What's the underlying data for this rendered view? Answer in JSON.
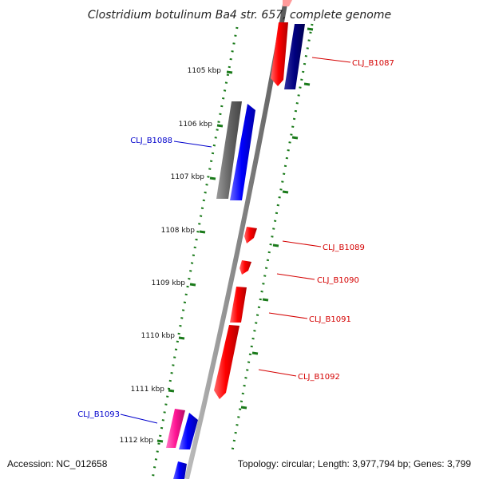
{
  "title": "Clostridium botulinum Ba4 str. 657, complete genome",
  "accession": "Accession: NC_012658",
  "summary": "Topology: circular; Length: 3,977,794 bp; Genes: 3,799",
  "ticks": [
    "1105 kbp",
    "1106 kbp",
    "1107 kbp",
    "1108 kbp",
    "1109 kbp",
    "1110 kbp",
    "1111 kbp",
    "1112 kbp"
  ],
  "gene_labels": [
    {
      "id": "CLJ_B1087",
      "color": "#d40000"
    },
    {
      "id": "CLJ_B1088",
      "color": "#0000cc"
    },
    {
      "id": "CLJ_B1089",
      "color": "#d40000"
    },
    {
      "id": "CLJ_B1090",
      "color": "#d40000"
    },
    {
      "id": "CLJ_B1091",
      "color": "#d40000"
    },
    {
      "id": "CLJ_B1092",
      "color": "#d40000"
    },
    {
      "id": "CLJ_B1093",
      "color": "#0000cc"
    }
  ],
  "colors": {
    "forward_strand": "#ff0000",
    "reverse_strand": "#0000ff",
    "dark_reverse": "#000080",
    "pseudogene": "#666666",
    "rna": "#ff1493",
    "backbone": "#888888",
    "tick_dots": "#1a7a1a"
  }
}
